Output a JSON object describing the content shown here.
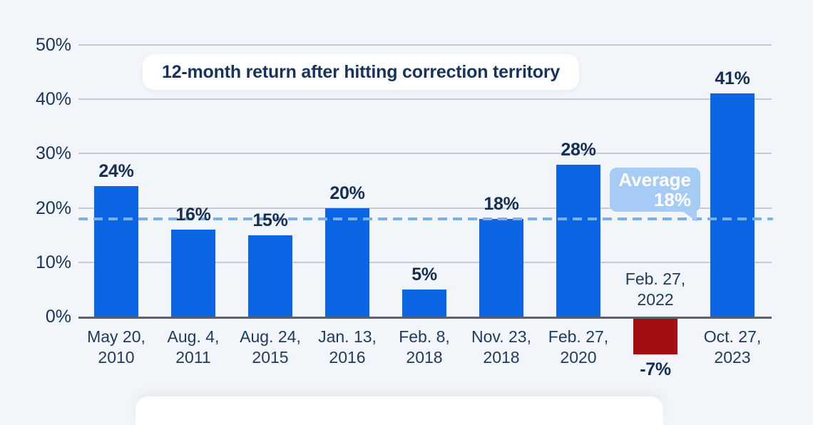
{
  "title": "12-month return after hitting correction territory",
  "annotation": {
    "label": "Average",
    "value": "18%"
  },
  "colors": {
    "background": "#f2f5f9",
    "bar_positive": "#0c66e4",
    "bar_negative": "#a40e13",
    "average_line": "#79b1ec",
    "badge_background": "#a6cbf5",
    "badge_text": "#ffffff",
    "text_navy": "#16335c",
    "gridline": "#c6cbd4",
    "axis_line": "#59616e",
    "card_background": "#ffffff"
  },
  "chart_data": {
    "type": "bar",
    "title": "12-month return after hitting correction territory",
    "categories": [
      [
        "May 20,",
        "2010"
      ],
      [
        "Aug. 4,",
        "2011"
      ],
      [
        "Aug. 24,",
        "2015"
      ],
      [
        "Jan. 13,",
        "2016"
      ],
      [
        "Feb. 8,",
        "2018"
      ],
      [
        "Nov. 23,",
        "2018"
      ],
      [
        "Feb. 27,",
        "2020"
      ],
      [
        "Feb. 27,",
        "2022"
      ],
      [
        "Oct. 27,",
        "2023"
      ]
    ],
    "values": [
      24,
      16,
      15,
      20,
      5,
      18,
      28,
      -7,
      41
    ],
    "value_labels": [
      "24%",
      "16%",
      "15%",
      "20%",
      "5%",
      "18%",
      "28%",
      "-7%",
      "41%"
    ],
    "yticks": [
      0,
      10,
      20,
      30,
      40,
      50
    ],
    "ytick_labels": [
      "0%",
      "10%",
      "20%",
      "30%",
      "40%",
      "50%"
    ],
    "ylim": [
      -10,
      50
    ],
    "grid": true,
    "average": 18,
    "average_label": "Average 18%",
    "legend": "none",
    "xlabel": "",
    "ylabel": ""
  }
}
